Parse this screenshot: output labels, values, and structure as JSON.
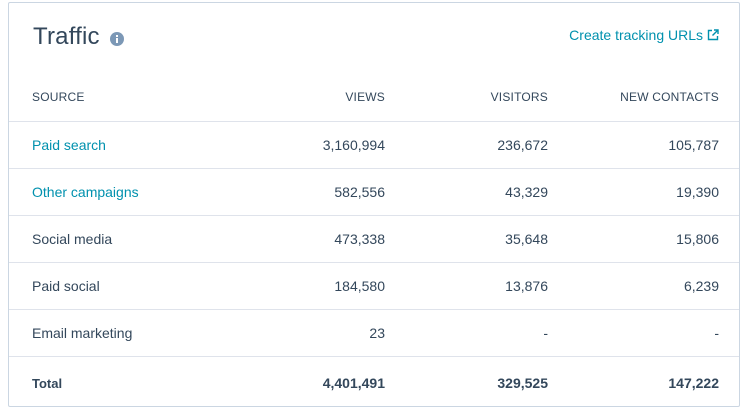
{
  "header": {
    "title": "Traffic",
    "info_icon": "info-icon",
    "tracking_link": "Create tracking URLs",
    "external_icon": "external-link-icon"
  },
  "table": {
    "columns": {
      "source": "Source",
      "views": "Views",
      "visitors": "Visitors",
      "new_contacts": "New contacts"
    },
    "rows": [
      {
        "source": "Paid search",
        "views": "3,160,994",
        "visitors": "236,672",
        "new_contacts": "105,787"
      },
      {
        "source": "Other campaigns",
        "views": "582,556",
        "visitors": "43,329",
        "new_contacts": "19,390"
      },
      {
        "source": "Social media",
        "views": "473,338",
        "visitors": "35,648",
        "new_contacts": "15,806"
      },
      {
        "source": "Paid social",
        "views": "184,580",
        "visitors": "13,876",
        "new_contacts": "6,239"
      },
      {
        "source": "Email marketing",
        "views": "23",
        "visitors": "-",
        "new_contacts": "-"
      }
    ],
    "total": {
      "source": "Total",
      "views": "4,401,491",
      "visitors": "329,525",
      "new_contacts": "147,222"
    }
  },
  "colors": {
    "text": "#33475b",
    "link": "#0091ae",
    "border": "#cbd6e2",
    "divider": "#dfe3eb",
    "info_icon": "#7c98b6"
  }
}
